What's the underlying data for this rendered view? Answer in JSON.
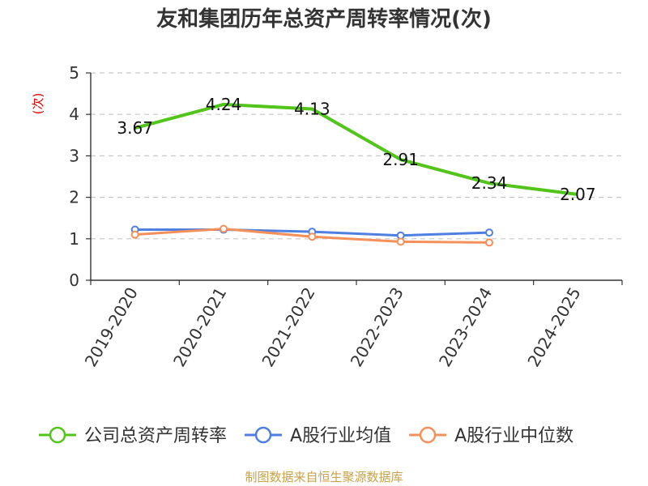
{
  "chart_data": {
    "type": "line",
    "title": "友和集团历年总资产周转率情况(次)",
    "ylabel": "(次)",
    "xlabel": "",
    "categories": [
      "2019-2020",
      "2020-2021",
      "2021-2022",
      "2022-2023",
      "2023-2024",
      "2024-2025"
    ],
    "ylim": [
      0,
      5
    ],
    "yticks": [
      0,
      1,
      2,
      3,
      4,
      5
    ],
    "grid": true,
    "legend_position": "bottom",
    "series": [
      {
        "name": "公司总资产周转率",
        "color": "#52c41a",
        "values": [
          3.67,
          4.24,
          4.13,
          2.91,
          2.34,
          2.07
        ],
        "labels": [
          "3.67",
          "4.24",
          "4.13",
          "2.91",
          "2.34",
          "2.07"
        ]
      },
      {
        "name": "A股行业均值",
        "color": "#4f7fe0",
        "values": [
          1.22,
          1.22,
          1.17,
          1.08,
          1.15,
          null
        ]
      },
      {
        "name": "A股行业中位数",
        "color": "#f5905a",
        "values": [
          1.1,
          1.24,
          1.05,
          0.93,
          0.91,
          null
        ]
      }
    ]
  },
  "source": "制图数据来自恒生聚源数据库"
}
